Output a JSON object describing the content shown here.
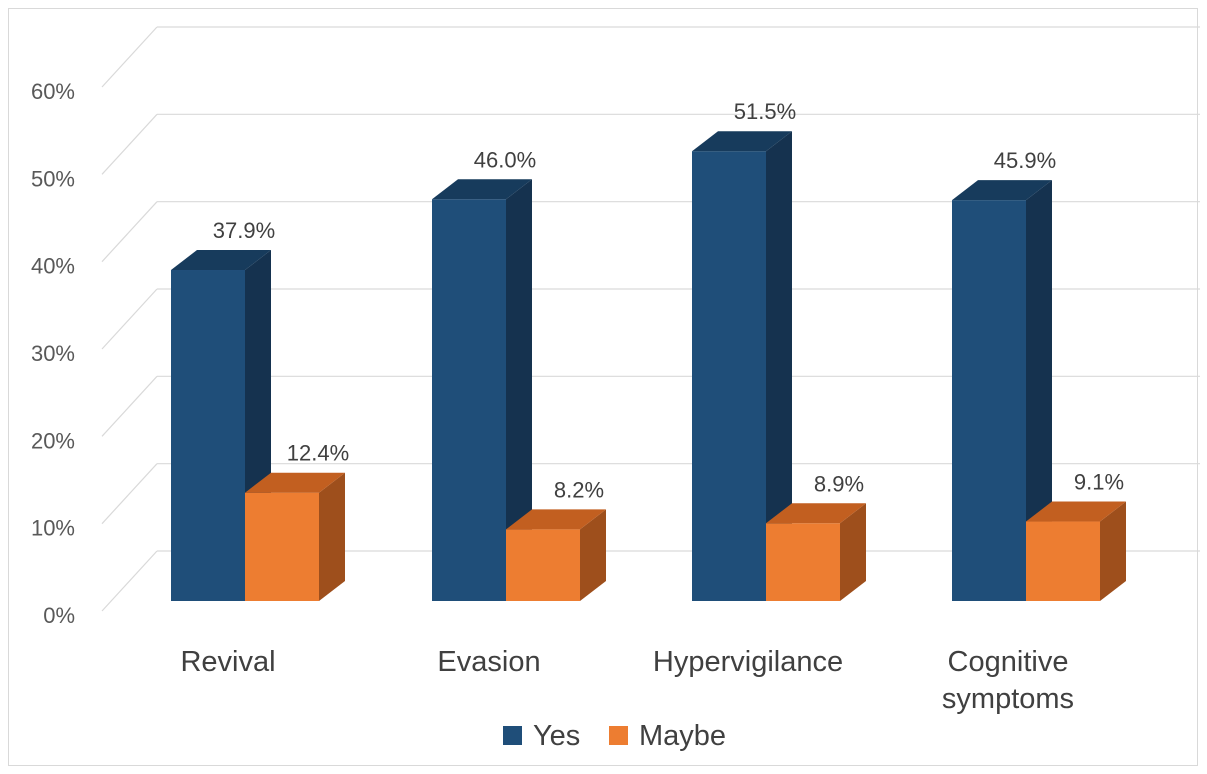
{
  "chart_data": {
    "type": "bar",
    "categories": [
      "Revival",
      "Evasion",
      "Hypervigilance",
      "Cognitive symptoms"
    ],
    "category_lines": [
      [
        "Revival"
      ],
      [
        "Evasion"
      ],
      [
        "Hypervigilance"
      ],
      [
        "Cognitive",
        "symptoms"
      ]
    ],
    "series": [
      {
        "name": "Yes",
        "values": [
          37.9,
          46.0,
          51.5,
          45.9
        ],
        "labels": [
          "37.9%",
          "46.0%",
          "51.5%",
          "45.9%"
        ],
        "color": "#1f4e79",
        "side_color": "#15324f",
        "top_color": "#173b5c"
      },
      {
        "name": "Maybe",
        "values": [
          12.4,
          8.2,
          8.9,
          9.1
        ],
        "labels": [
          "12.4%",
          "8.2%",
          "8.9%",
          "9.1%"
        ],
        "color": "#ed7d31",
        "side_color": "#9e4f1c",
        "top_color": "#c25f20"
      }
    ],
    "y_ticks": [
      "0%",
      "10%",
      "20%",
      "30%",
      "40%",
      "50%",
      "60%"
    ],
    "ylim": [
      0,
      60
    ],
    "grid": true,
    "legend_position": "bottom",
    "title": "",
    "xlabel": "",
    "ylabel": ""
  }
}
